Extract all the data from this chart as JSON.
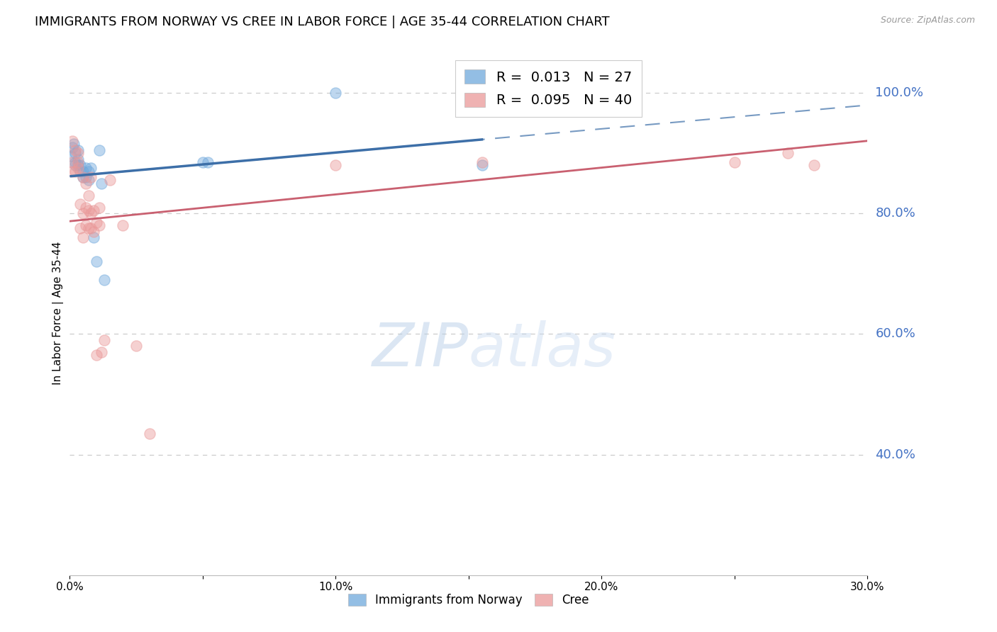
{
  "title": "IMMIGRANTS FROM NORWAY VS CREE IN LABOR FORCE | AGE 35-44 CORRELATION CHART",
  "source": "Source: ZipAtlas.com",
  "ylabel": "In Labor Force | Age 35-44",
  "xlim": [
    0.0,
    0.3
  ],
  "ylim": [
    0.2,
    1.07
  ],
  "norway_R": 0.013,
  "norway_N": 27,
  "cree_R": 0.095,
  "cree_N": 40,
  "norway_color": "#6fa8dc",
  "cree_color": "#ea9999",
  "norway_line_color": "#3d6fa8",
  "cree_line_color": "#c96070",
  "norway_x": [
    0.0005,
    0.001,
    0.0015,
    0.002,
    0.002,
    0.002,
    0.003,
    0.003,
    0.003,
    0.004,
    0.004,
    0.005,
    0.005,
    0.006,
    0.006,
    0.007,
    0.007,
    0.008,
    0.009,
    0.01,
    0.011,
    0.012,
    0.013,
    0.05,
    0.052,
    0.1,
    0.155
  ],
  "norway_y": [
    0.895,
    0.91,
    0.915,
    0.9,
    0.885,
    0.88,
    0.905,
    0.89,
    0.88,
    0.88,
    0.87,
    0.87,
    0.86,
    0.86,
    0.875,
    0.855,
    0.87,
    0.875,
    0.76,
    0.72,
    0.905,
    0.85,
    0.69,
    0.885,
    0.885,
    1.0,
    0.88
  ],
  "cree_x": [
    0.001,
    0.001,
    0.001,
    0.002,
    0.002,
    0.003,
    0.003,
    0.003,
    0.004,
    0.004,
    0.005,
    0.005,
    0.005,
    0.006,
    0.006,
    0.006,
    0.007,
    0.007,
    0.007,
    0.008,
    0.008,
    0.008,
    0.009,
    0.009,
    0.01,
    0.01,
    0.011,
    0.011,
    0.012,
    0.013,
    0.015,
    0.02,
    0.025,
    0.03,
    0.1,
    0.155,
    0.2,
    0.25,
    0.27,
    0.28
  ],
  "cree_y": [
    0.87,
    0.885,
    0.92,
    0.87,
    0.905,
    0.875,
    0.885,
    0.9,
    0.775,
    0.815,
    0.76,
    0.8,
    0.86,
    0.78,
    0.81,
    0.85,
    0.775,
    0.805,
    0.83,
    0.775,
    0.8,
    0.86,
    0.77,
    0.805,
    0.565,
    0.785,
    0.78,
    0.81,
    0.57,
    0.59,
    0.855,
    0.78,
    0.58,
    0.435,
    0.88,
    0.885,
    1.0,
    0.885,
    0.9,
    0.88
  ],
  "yticks_right": [
    1.0,
    0.8,
    0.6,
    0.4
  ],
  "ytick_right_labels": [
    "100.0%",
    "80.0%",
    "60.0%",
    "40.0%"
  ],
  "xticks": [
    0.0,
    0.05,
    0.1,
    0.15,
    0.2,
    0.25,
    0.3
  ],
  "xticklabels": [
    "0.0%",
    "",
    "10.0%",
    "",
    "20.0%",
    "",
    "30.0%"
  ],
  "watermark_zip": "ZIP",
  "watermark_atlas": "atlas",
  "background_color": "#ffffff",
  "grid_color": "#cccccc",
  "right_label_color": "#4472c4",
  "title_fontsize": 13,
  "label_fontsize": 11,
  "tick_fontsize": 11,
  "dot_size": 120,
  "dot_alpha": 0.45
}
